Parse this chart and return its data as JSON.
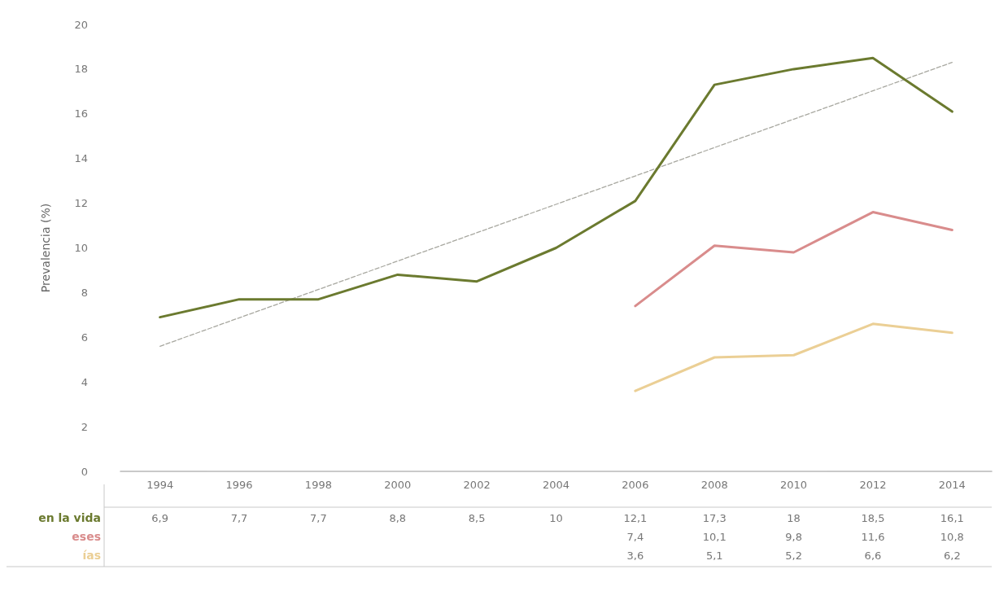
{
  "chart_data": {
    "type": "line",
    "ylabel": "Prevalencia (%)",
    "categories": [
      "1994",
      "1996",
      "1998",
      "2000",
      "2002",
      "2004",
      "2006",
      "2008",
      "2010",
      "2012",
      "2014"
    ],
    "series": [
      {
        "name": "en la vida",
        "color": "#6b7a2f",
        "values": [
          6.9,
          7.7,
          7.7,
          8.8,
          8.5,
          10,
          12.1,
          17.3,
          18,
          18.5,
          16.1
        ],
        "value_labels": [
          "6,9",
          "7,7",
          "7,7",
          "8,8",
          "8,5",
          "10",
          "12,1",
          "17,3",
          "18",
          "18,5",
          "16,1"
        ]
      },
      {
        "name": "eses",
        "color": "#d98c8c",
        "values": [
          null,
          null,
          null,
          null,
          null,
          null,
          7.4,
          10.1,
          9.8,
          11.6,
          10.8
        ],
        "value_labels": [
          null,
          null,
          null,
          null,
          null,
          null,
          "7,4",
          "10,1",
          "9,8",
          "11,6",
          "10,8"
        ]
      },
      {
        "name": "ías",
        "color": "#ebcf95",
        "values": [
          null,
          null,
          null,
          null,
          null,
          null,
          3.6,
          5.1,
          5.2,
          6.6,
          6.2
        ],
        "value_labels": [
          null,
          null,
          null,
          null,
          null,
          null,
          "3,6",
          "5,1",
          "5,2",
          "6,6",
          "6,2"
        ]
      },
      {
        "color": "#a8a8a0",
        "line_style": "dashed",
        "values": [
          5.6,
          null,
          null,
          null,
          null,
          null,
          null,
          null,
          null,
          null,
          18.3
        ]
      }
    ],
    "ylim": [
      0,
      20
    ],
    "yticks": [
      0,
      2,
      4,
      6,
      8,
      10,
      12,
      14,
      16,
      18,
      20
    ],
    "grid": false,
    "legend": false,
    "marker": "none",
    "line_style": "solid"
  }
}
